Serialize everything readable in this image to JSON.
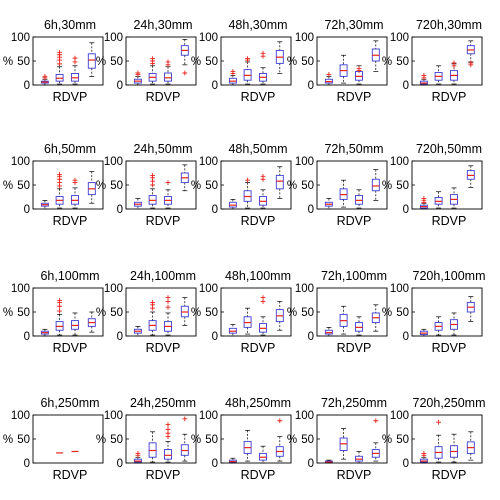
{
  "figure": {
    "layout": "4x5 small-multiple grid of box plots",
    "box_color": "#3b3bd6",
    "outlier_color": "#e8231a",
    "median_color": "#e8231a"
  },
  "chart_data": [
    {
      "type": "box",
      "title": "6h,30mm",
      "xlabel": "RDVP",
      "ylabel": "%",
      "ylim": [
        0,
        100
      ],
      "yticks": [
        0,
        50,
        100
      ],
      "boxes": [
        {
          "q1": 4,
          "median": 6,
          "q3": 8,
          "low": 0,
          "high": 12,
          "outliers": [
            15,
            18
          ]
        },
        {
          "q1": 8,
          "median": 14,
          "q3": 22,
          "low": 2,
          "high": 38,
          "outliers": [
            44,
            52,
            58,
            63,
            68
          ]
        },
        {
          "q1": 8,
          "median": 15,
          "q3": 24,
          "low": 2,
          "high": 40,
          "outliers": [
            48,
            56
          ]
        },
        {
          "q1": 35,
          "median": 52,
          "q3": 65,
          "low": 18,
          "high": 88,
          "outliers": []
        }
      ]
    },
    {
      "type": "box",
      "title": "24h,30mm",
      "xlabel": "RDVP",
      "ylabel": "%",
      "ylim": [
        0,
        100
      ],
      "yticks": [
        0,
        50,
        100
      ],
      "boxes": [
        {
          "q1": 4,
          "median": 8,
          "q3": 12,
          "low": 0,
          "high": 18,
          "outliers": [
            22,
            25
          ]
        },
        {
          "q1": 8,
          "median": 16,
          "q3": 24,
          "low": 2,
          "high": 40,
          "outliers": [
            45,
            50,
            55
          ]
        },
        {
          "q1": 8,
          "median": 15,
          "q3": 25,
          "low": 2,
          "high": 38,
          "outliers": [
            42,
            48
          ]
        },
        {
          "q1": 62,
          "median": 72,
          "q3": 82,
          "low": 42,
          "high": 95,
          "outliers": [
            25
          ]
        }
      ]
    },
    {
      "type": "box",
      "title": "48h,30mm",
      "xlabel": "RDVP",
      "ylabel": "%",
      "ylim": [
        0,
        100
      ],
      "yticks": [
        0,
        50,
        100
      ],
      "boxes": [
        {
          "q1": 4,
          "median": 8,
          "q3": 14,
          "low": 0,
          "high": 20,
          "outliers": [
            24,
            28
          ]
        },
        {
          "q1": 10,
          "median": 20,
          "q3": 32,
          "low": 2,
          "high": 48,
          "outliers": [
            52,
            55
          ]
        },
        {
          "q1": 8,
          "median": 16,
          "q3": 24,
          "low": 2,
          "high": 36,
          "outliers": [
            60,
            66
          ]
        },
        {
          "q1": 45,
          "median": 58,
          "q3": 72,
          "low": 24,
          "high": 90,
          "outliers": []
        }
      ]
    },
    {
      "type": "box",
      "title": "72h,30mm",
      "xlabel": "RDVP",
      "ylabel": "%",
      "ylim": [
        0,
        100
      ],
      "yticks": [
        0,
        50,
        100
      ],
      "boxes": [
        {
          "q1": 4,
          "median": 7,
          "q3": 12,
          "low": 0,
          "high": 18,
          "outliers": [
            22
          ]
        },
        {
          "q1": 18,
          "median": 30,
          "q3": 42,
          "low": 4,
          "high": 62,
          "outliers": []
        },
        {
          "q1": 10,
          "median": 18,
          "q3": 28,
          "low": 2,
          "high": 40,
          "outliers": [
            30,
            34
          ]
        },
        {
          "q1": 50,
          "median": 62,
          "q3": 75,
          "low": 28,
          "high": 92,
          "outliers": []
        }
      ]
    },
    {
      "type": "box",
      "title": "720h,30mm",
      "xlabel": "RDVP",
      "ylabel": "%",
      "ylim": [
        0,
        100
      ],
      "yticks": [
        0,
        50,
        100
      ],
      "boxes": [
        {
          "q1": 2,
          "median": 4,
          "q3": 8,
          "low": 0,
          "high": 12,
          "outliers": [
            15,
            20
          ]
        },
        {
          "q1": 10,
          "median": 18,
          "q3": 26,
          "low": 2,
          "high": 40,
          "outliers": []
        },
        {
          "q1": 10,
          "median": 20,
          "q3": 30,
          "low": 2,
          "high": 44,
          "outliers": [
            40,
            46
          ]
        },
        {
          "q1": 65,
          "median": 73,
          "q3": 82,
          "low": 48,
          "high": 92,
          "outliers": [
            42,
            46
          ]
        }
      ]
    },
    {
      "type": "box",
      "title": "6h,50mm",
      "xlabel": "RDVP",
      "ylabel": "%",
      "ylim": [
        0,
        100
      ],
      "yticks": [
        0,
        50,
        100
      ],
      "boxes": [
        {
          "q1": 6,
          "median": 9,
          "q3": 12,
          "low": 0,
          "high": 18,
          "outliers": []
        },
        {
          "q1": 10,
          "median": 18,
          "q3": 26,
          "low": 2,
          "high": 42,
          "outliers": [
            48,
            55,
            62,
            68,
            72
          ]
        },
        {
          "q1": 10,
          "median": 18,
          "q3": 28,
          "low": 2,
          "high": 44,
          "outliers": [
            55,
            60
          ]
        },
        {
          "q1": 30,
          "median": 42,
          "q3": 55,
          "low": 12,
          "high": 78,
          "outliers": []
        }
      ]
    },
    {
      "type": "box",
      "title": "24h,50mm",
      "xlabel": "RDVP",
      "ylabel": "%",
      "ylim": [
        0,
        100
      ],
      "yticks": [
        0,
        50,
        100
      ],
      "boxes": [
        {
          "q1": 6,
          "median": 10,
          "q3": 14,
          "low": 0,
          "high": 22,
          "outliers": []
        },
        {
          "q1": 10,
          "median": 18,
          "q3": 28,
          "low": 2,
          "high": 42,
          "outliers": [
            50,
            58,
            65,
            70
          ]
        },
        {
          "q1": 10,
          "median": 18,
          "q3": 26,
          "low": 2,
          "high": 40,
          "outliers": [
            55
          ]
        },
        {
          "q1": 55,
          "median": 65,
          "q3": 75,
          "low": 38,
          "high": 92,
          "outliers": []
        }
      ]
    },
    {
      "type": "box",
      "title": "48h,50mm",
      "xlabel": "RDVP",
      "ylabel": "%",
      "ylim": [
        0,
        100
      ],
      "yticks": [
        0,
        50,
        100
      ],
      "boxes": [
        {
          "q1": 4,
          "median": 8,
          "q3": 14,
          "low": 0,
          "high": 20,
          "outliers": []
        },
        {
          "q1": 16,
          "median": 26,
          "q3": 38,
          "low": 2,
          "high": 55,
          "outliers": [
            60
          ]
        },
        {
          "q1": 8,
          "median": 16,
          "q3": 26,
          "low": 2,
          "high": 40,
          "outliers": [
            62,
            68
          ]
        },
        {
          "q1": 42,
          "median": 58,
          "q3": 70,
          "low": 22,
          "high": 88,
          "outliers": []
        }
      ]
    },
    {
      "type": "box",
      "title": "72h,50mm",
      "xlabel": "RDVP",
      "ylabel": "%",
      "ylim": [
        0,
        100
      ],
      "yticks": [
        0,
        50,
        100
      ],
      "boxes": [
        {
          "q1": 6,
          "median": 10,
          "q3": 14,
          "low": 0,
          "high": 22,
          "outliers": []
        },
        {
          "q1": 20,
          "median": 30,
          "q3": 42,
          "low": 4,
          "high": 60,
          "outliers": []
        },
        {
          "q1": 10,
          "median": 18,
          "q3": 28,
          "low": 2,
          "high": 40,
          "outliers": []
        },
        {
          "q1": 38,
          "median": 48,
          "q3": 62,
          "low": 18,
          "high": 82,
          "outliers": []
        }
      ]
    },
    {
      "type": "box",
      "title": "720h,50mm",
      "xlabel": "RDVP",
      "ylabel": "%",
      "ylim": [
        0,
        100
      ],
      "yticks": [
        0,
        50,
        100
      ],
      "boxes": [
        {
          "q1": 2,
          "median": 5,
          "q3": 8,
          "low": 0,
          "high": 12,
          "outliers": [
            14,
            18,
            22
          ]
        },
        {
          "q1": 10,
          "median": 16,
          "q3": 24,
          "low": 2,
          "high": 36,
          "outliers": []
        },
        {
          "q1": 10,
          "median": 20,
          "q3": 30,
          "low": 2,
          "high": 44,
          "outliers": []
        },
        {
          "q1": 62,
          "median": 70,
          "q3": 80,
          "low": 45,
          "high": 90,
          "outliers": []
        }
      ]
    },
    {
      "type": "box",
      "title": "6h,100mm",
      "xlabel": "RDVP",
      "ylabel": "%",
      "ylim": [
        0,
        100
      ],
      "yticks": [
        0,
        50,
        100
      ],
      "boxes": [
        {
          "q1": 4,
          "median": 7,
          "q3": 10,
          "low": 0,
          "high": 14,
          "outliers": []
        },
        {
          "q1": 12,
          "median": 20,
          "q3": 30,
          "low": 2,
          "high": 45,
          "outliers": [
            52,
            62,
            70,
            74
          ]
        },
        {
          "q1": 14,
          "median": 22,
          "q3": 32,
          "low": 2,
          "high": 48,
          "outliers": []
        },
        {
          "q1": 20,
          "median": 28,
          "q3": 36,
          "low": 8,
          "high": 50,
          "outliers": []
        }
      ]
    },
    {
      "type": "box",
      "title": "24h,100mm",
      "xlabel": "RDVP",
      "ylabel": "%",
      "ylim": [
        0,
        100
      ],
      "yticks": [
        0,
        50,
        100
      ],
      "boxes": [
        {
          "q1": 6,
          "median": 10,
          "q3": 14,
          "low": 0,
          "high": 20,
          "outliers": []
        },
        {
          "q1": 12,
          "median": 22,
          "q3": 32,
          "low": 2,
          "high": 50,
          "outliers": [
            58,
            65,
            70
          ]
        },
        {
          "q1": 10,
          "median": 20,
          "q3": 30,
          "low": 2,
          "high": 48,
          "outliers": [
            60,
            72,
            80
          ]
        },
        {
          "q1": 40,
          "median": 50,
          "q3": 62,
          "low": 22,
          "high": 80,
          "outliers": []
        }
      ]
    },
    {
      "type": "box",
      "title": "48h,100mm",
      "xlabel": "RDVP",
      "ylabel": "%",
      "ylim": [
        0,
        100
      ],
      "yticks": [
        0,
        50,
        100
      ],
      "boxes": [
        {
          "q1": 6,
          "median": 10,
          "q3": 16,
          "low": 0,
          "high": 24,
          "outliers": []
        },
        {
          "q1": 18,
          "median": 28,
          "q3": 40,
          "low": 4,
          "high": 58,
          "outliers": []
        },
        {
          "q1": 8,
          "median": 16,
          "q3": 26,
          "low": 2,
          "high": 40,
          "outliers": [
            72,
            80
          ]
        },
        {
          "q1": 30,
          "median": 42,
          "q3": 55,
          "low": 12,
          "high": 72,
          "outliers": []
        }
      ]
    },
    {
      "type": "box",
      "title": "72h,100mm",
      "xlabel": "RDVP",
      "ylabel": "%",
      "ylim": [
        0,
        100
      ],
      "yticks": [
        0,
        50,
        100
      ],
      "boxes": [
        {
          "q1": 4,
          "median": 7,
          "q3": 12,
          "low": 0,
          "high": 18,
          "outliers": []
        },
        {
          "q1": 20,
          "median": 32,
          "q3": 45,
          "low": 4,
          "high": 62,
          "outliers": []
        },
        {
          "q1": 10,
          "median": 18,
          "q3": 28,
          "low": 2,
          "high": 40,
          "outliers": []
        },
        {
          "q1": 28,
          "median": 38,
          "q3": 48,
          "low": 10,
          "high": 65,
          "outliers": []
        }
      ]
    },
    {
      "type": "box",
      "title": "720h,100mm",
      "xlabel": "RDVP",
      "ylabel": "%",
      "ylim": [
        0,
        100
      ],
      "yticks": [
        0,
        50,
        100
      ],
      "boxes": [
        {
          "q1": 3,
          "median": 6,
          "q3": 10,
          "low": 0,
          "high": 14,
          "outliers": []
        },
        {
          "q1": 12,
          "median": 20,
          "q3": 28,
          "low": 2,
          "high": 40,
          "outliers": []
        },
        {
          "q1": 14,
          "median": 24,
          "q3": 34,
          "low": 2,
          "high": 48,
          "outliers": []
        },
        {
          "q1": 50,
          "median": 60,
          "q3": 70,
          "low": 30,
          "high": 82,
          "outliers": []
        }
      ]
    },
    {
      "type": "box",
      "title": "6h,250mm",
      "xlabel": "RDVP",
      "ylabel": "%",
      "ylim": [
        0,
        100
      ],
      "yticks": [
        0,
        50,
        100
      ],
      "boxes": [
        {
          "q1": null,
          "median": null,
          "q3": null,
          "low": null,
          "high": null,
          "outliers": []
        },
        {
          "q1": null,
          "median": 21,
          "q3": null,
          "low": null,
          "high": null,
          "outliers": []
        },
        {
          "q1": null,
          "median": 24,
          "q3": null,
          "low": null,
          "high": null,
          "outliers": []
        },
        {
          "q1": null,
          "median": null,
          "q3": null,
          "low": null,
          "high": null,
          "outliers": []
        }
      ]
    },
    {
      "type": "box",
      "title": "24h,250mm",
      "xlabel": "RDVP",
      "ylabel": "%",
      "ylim": [
        0,
        100
      ],
      "yticks": [
        0,
        50,
        100
      ],
      "boxes": [
        {
          "q1": 2,
          "median": 4,
          "q3": 8,
          "low": 0,
          "high": 12,
          "outliers": [
            16,
            20
          ]
        },
        {
          "q1": 12,
          "median": 26,
          "q3": 42,
          "low": 2,
          "high": 65,
          "outliers": []
        },
        {
          "q1": 8,
          "median": 16,
          "q3": 28,
          "low": 2,
          "high": 45,
          "outliers": [
            55,
            62,
            70,
            80
          ]
        },
        {
          "q1": 16,
          "median": 26,
          "q3": 38,
          "low": 4,
          "high": 60,
          "outliers": [
            92
          ]
        }
      ]
    },
    {
      "type": "box",
      "title": "48h,250mm",
      "xlabel": "RDVP",
      "ylabel": "%",
      "ylim": [
        0,
        100
      ],
      "yticks": [
        0,
        50,
        100
      ],
      "boxes": [
        {
          "q1": 2,
          "median": 3,
          "q3": 6,
          "low": 0,
          "high": 10,
          "outliers": []
        },
        {
          "q1": 20,
          "median": 32,
          "q3": 45,
          "low": 4,
          "high": 68,
          "outliers": []
        },
        {
          "q1": 6,
          "median": 12,
          "q3": 20,
          "low": 0,
          "high": 35,
          "outliers": []
        },
        {
          "q1": 14,
          "median": 24,
          "q3": 34,
          "low": 4,
          "high": 55,
          "outliers": [
            88
          ]
        }
      ]
    },
    {
      "type": "box",
      "title": "72h,250mm",
      "xlabel": "RDVP",
      "ylabel": "%",
      "ylim": [
        0,
        100
      ],
      "yticks": [
        0,
        50,
        100
      ],
      "boxes": [
        {
          "q1": 1,
          "median": 2,
          "q3": 4,
          "low": 0,
          "high": 6,
          "outliers": []
        },
        {
          "q1": 26,
          "median": 40,
          "q3": 52,
          "low": 8,
          "high": 72,
          "outliers": []
        },
        {
          "q1": 4,
          "median": 8,
          "q3": 14,
          "low": 0,
          "high": 24,
          "outliers": []
        },
        {
          "q1": 12,
          "median": 20,
          "q3": 28,
          "low": 4,
          "high": 42,
          "outliers": [
            88
          ]
        }
      ]
    },
    {
      "type": "box",
      "title": "720h,250mm",
      "xlabel": "RDVP",
      "ylabel": "%",
      "ylim": [
        0,
        100
      ],
      "yticks": [
        0,
        50,
        100
      ],
      "boxes": [
        {
          "q1": 2,
          "median": 4,
          "q3": 8,
          "low": 0,
          "high": 12,
          "outliers": [
            16,
            20
          ]
        },
        {
          "q1": 10,
          "median": 22,
          "q3": 34,
          "low": 2,
          "high": 58,
          "outliers": [
            85
          ]
        },
        {
          "q1": 12,
          "median": 24,
          "q3": 36,
          "low": 2,
          "high": 60,
          "outliers": []
        },
        {
          "q1": 20,
          "median": 32,
          "q3": 44,
          "low": 6,
          "high": 65,
          "outliers": []
        }
      ]
    }
  ]
}
